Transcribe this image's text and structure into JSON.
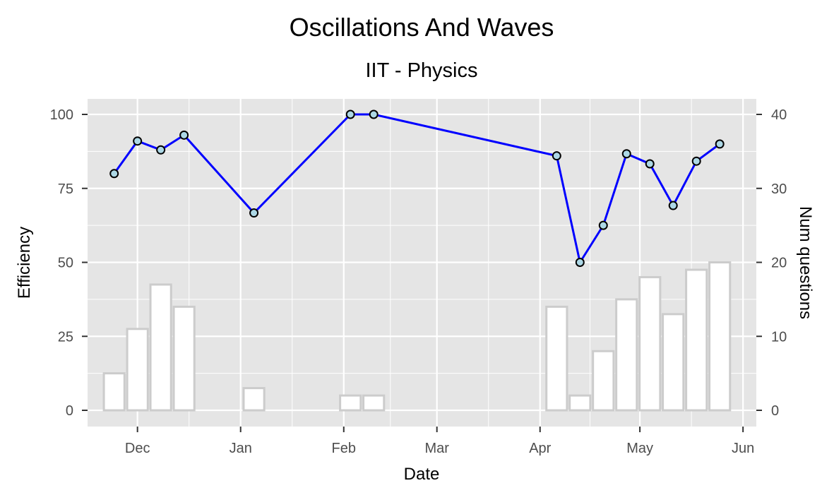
{
  "chart_data": {
    "type": "line+bar",
    "title": "Oscillations And Waves",
    "subtitle": "IIT - Physics",
    "xlabel": "Date",
    "ylabel": "Efficiency",
    "y2label": "Num questions",
    "ylim": [
      0,
      100
    ],
    "y2lim": [
      0,
      40
    ],
    "xlim": [
      "2016-11-16",
      "2017-06-05"
    ],
    "x_ticks": [
      {
        "date": "2016-12-01",
        "label": "Dec"
      },
      {
        "date": "2017-01-01",
        "label": "Jan"
      },
      {
        "date": "2017-02-01",
        "label": "Feb"
      },
      {
        "date": "2017-03-01",
        "label": "Mar"
      },
      {
        "date": "2017-04-01",
        "label": "Apr"
      },
      {
        "date": "2017-05-01",
        "label": "May"
      },
      {
        "date": "2017-06-01",
        "label": "Jun"
      }
    ],
    "y_ticks": [
      "0",
      "25",
      "50",
      "75",
      "100"
    ],
    "y2_ticks": [
      "0",
      "10",
      "20",
      "30",
      "40"
    ],
    "grid": true,
    "line_series": {
      "color": "#0000ff",
      "point_fill": "#add8e6",
      "points": [
        {
          "date": "2016-11-24",
          "value": 80
        },
        {
          "date": "2016-12-01",
          "value": 91
        },
        {
          "date": "2016-12-08",
          "value": 88
        },
        {
          "date": "2016-12-15",
          "value": 93
        },
        {
          "date": "2017-01-05",
          "value": 66.7
        },
        {
          "date": "2017-02-03",
          "value": 100
        },
        {
          "date": "2017-02-10",
          "value": 100
        },
        {
          "date": "2017-04-06",
          "value": 86
        },
        {
          "date": "2017-04-13",
          "value": 50
        },
        {
          "date": "2017-04-20",
          "value": 62.5
        },
        {
          "date": "2017-04-27",
          "value": 86.7
        },
        {
          "date": "2017-05-04",
          "value": 83.3
        },
        {
          "date": "2017-05-11",
          "value": 69.2
        },
        {
          "date": "2017-05-18",
          "value": 84.2
        },
        {
          "date": "2017-05-25",
          "value": 90
        }
      ]
    },
    "bar_series": {
      "fill": "#ffffff",
      "stroke": "#cccccc",
      "bars": [
        {
          "date": "2016-11-24",
          "value": 5
        },
        {
          "date": "2016-12-01",
          "value": 11
        },
        {
          "date": "2016-12-08",
          "value": 17
        },
        {
          "date": "2016-12-15",
          "value": 14
        },
        {
          "date": "2017-01-05",
          "value": 3
        },
        {
          "date": "2017-02-03",
          "value": 2
        },
        {
          "date": "2017-02-10",
          "value": 2
        },
        {
          "date": "2017-04-06",
          "value": 14
        },
        {
          "date": "2017-04-13",
          "value": 2
        },
        {
          "date": "2017-04-20",
          "value": 8
        },
        {
          "date": "2017-04-27",
          "value": 15
        },
        {
          "date": "2017-05-04",
          "value": 18
        },
        {
          "date": "2017-05-11",
          "value": 13
        },
        {
          "date": "2017-05-18",
          "value": 19
        },
        {
          "date": "2017-05-25",
          "value": 20
        }
      ]
    },
    "panel_background": "#e5e5e5"
  }
}
